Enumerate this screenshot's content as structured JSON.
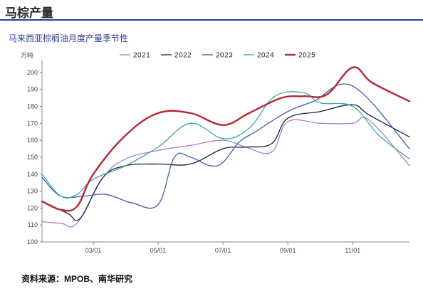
{
  "header": {
    "title": "马棕产量"
  },
  "chart_title": "马来西亚棕榈油月度产量季节性",
  "source": "资料来源：MPOB、南华研究",
  "colors": {
    "header_rule": "#2c3e9a"
  },
  "chart_data": {
    "type": "line",
    "title": "马来西亚棕榈油月度产量季节性",
    "ylabel": "万吨",
    "xlabel": "",
    "ylim": [
      100,
      205
    ],
    "yticks": [
      100,
      110,
      120,
      130,
      140,
      150,
      160,
      170,
      180,
      190,
      200
    ],
    "xticks": [
      {
        "label": "03/01",
        "x": 2
      },
      {
        "label": "05/01",
        "x": 4
      },
      {
        "label": "07/01",
        "x": 6
      },
      {
        "label": "09/01",
        "x": 8
      },
      {
        "label": "11/01",
        "x": 10
      }
    ],
    "xlim": [
      0.42,
      11.75
    ],
    "legend_position": "top",
    "series": [
      {
        "name": "2021",
        "color": "#a87fd1",
        "width": 1.3,
        "x": [
          0.42,
          1,
          1.5,
          2.3,
          3,
          4,
          5,
          6,
          6.7,
          7.5,
          8,
          9,
          10,
          10.5,
          11.75
        ],
        "values": [
          112,
          111,
          111,
          138,
          149,
          154,
          157,
          160,
          156,
          153,
          171,
          170,
          170,
          172,
          145
        ]
      },
      {
        "name": "2022",
        "color": "#1a1f3a",
        "width": 1.3,
        "x": [
          0.42,
          1.2,
          1.6,
          2.3,
          3,
          4,
          5,
          6,
          6.7,
          7.5,
          8,
          9,
          10,
          10.5,
          11.75
        ],
        "values": [
          124,
          117,
          114,
          138,
          145,
          146,
          146,
          155,
          156,
          158,
          173,
          177,
          181,
          175,
          162
        ]
      },
      {
        "name": "2023",
        "color": "#3e5ea8",
        "width": 1.3,
        "x": [
          0.42,
          1,
          1.7,
          2.4,
          3.2,
          4,
          4.5,
          5,
          5.6,
          6,
          6.5,
          7,
          8,
          8.8,
          10,
          11.75
        ],
        "values": [
          138,
          127,
          127,
          128,
          123,
          122,
          150,
          150,
          145,
          147,
          159,
          165,
          177,
          183,
          192,
          155
        ]
      },
      {
        "name": "2024",
        "color": "#3aaa9e",
        "width": 1.3,
        "x": [
          0.42,
          1,
          1.5,
          2,
          3,
          4,
          5,
          6,
          6.8,
          7.6,
          8.5,
          9,
          10,
          10.8,
          11.75
        ],
        "values": [
          140,
          127,
          128,
          137,
          145,
          156,
          170,
          161,
          167,
          186,
          188,
          182,
          180,
          163,
          149
        ]
      },
      {
        "name": "2025",
        "color": "#b82433",
        "width": 2.4,
        "x": [
          0.42,
          1,
          1.5,
          2,
          3,
          4,
          5,
          6,
          6.8,
          7.8,
          8.5,
          9.2,
          10,
          10.6,
          11.75
        ],
        "values": [
          124,
          119,
          121,
          140,
          163,
          176,
          176,
          169,
          176,
          185,
          186,
          187,
          203,
          194,
          183
        ]
      }
    ]
  }
}
